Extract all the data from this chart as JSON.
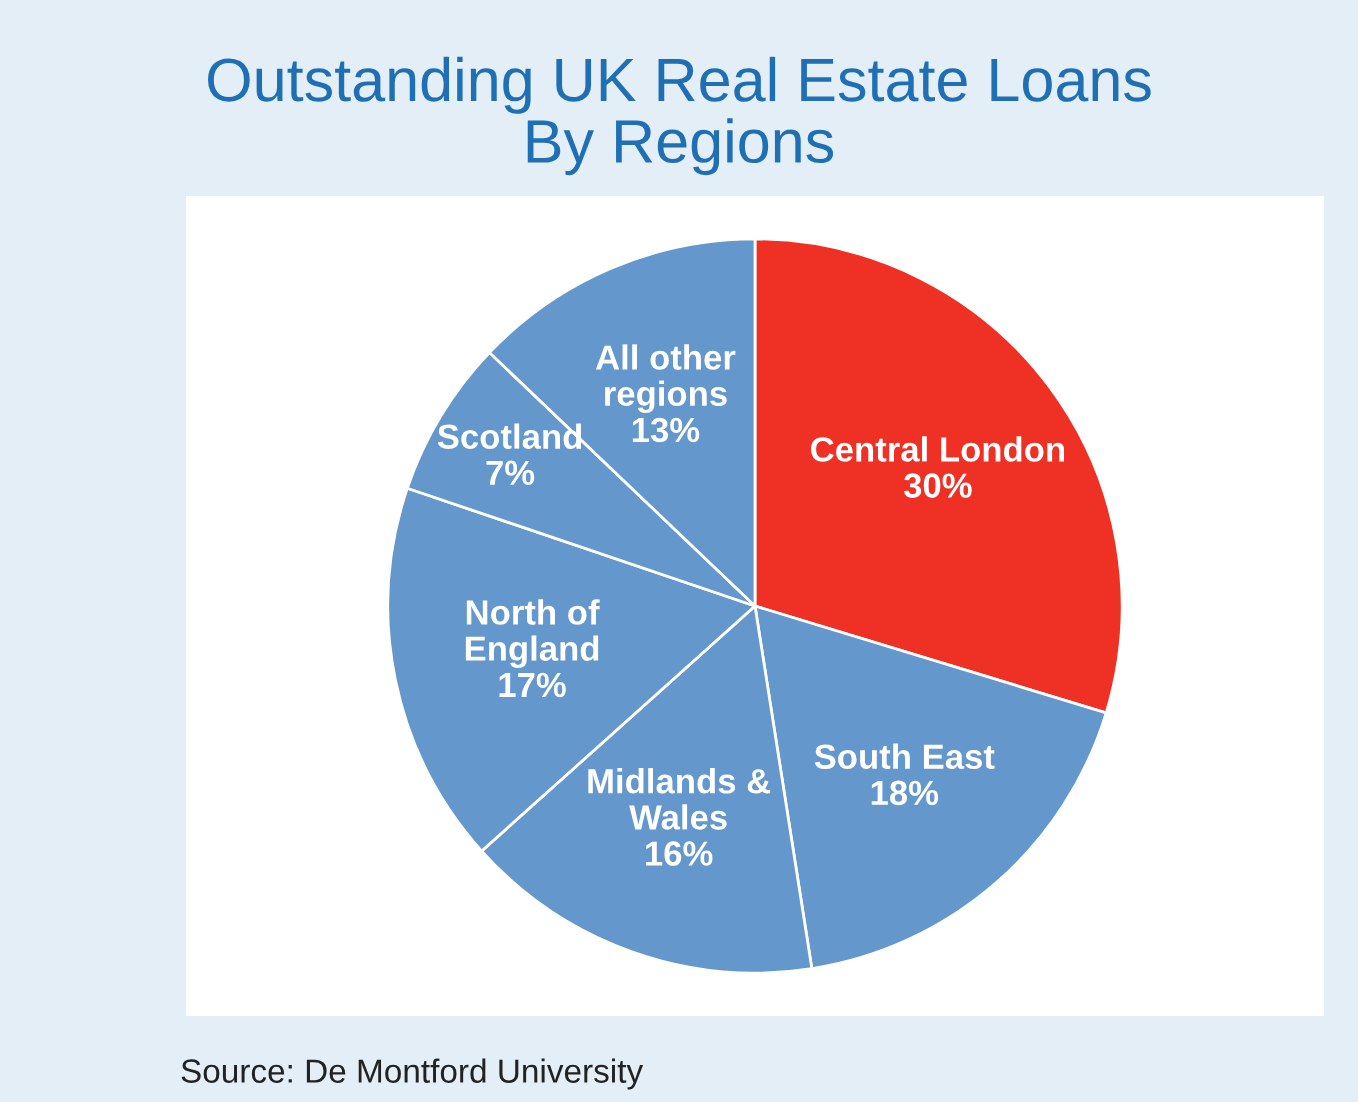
{
  "chart_data": {
    "type": "pie",
    "title": "Outstanding UK Real Estate Loans\nBy Regions",
    "categories": [
      "Central London",
      "South East",
      "Midlands &\nWales",
      "North of\nEngland",
      "Scotland",
      "All other\nregions"
    ],
    "values": [
      30,
      18,
      16,
      17,
      7,
      13
    ],
    "value_labels": [
      "30%",
      "18%",
      "16%",
      "17%",
      "7%",
      "13%"
    ],
    "colors": [
      "#ee3124",
      "#6497cb",
      "#6497cb",
      "#6497cb",
      "#6497cb",
      "#6497cb"
    ],
    "annotations": [
      "Source: De Montford University"
    ]
  }
}
